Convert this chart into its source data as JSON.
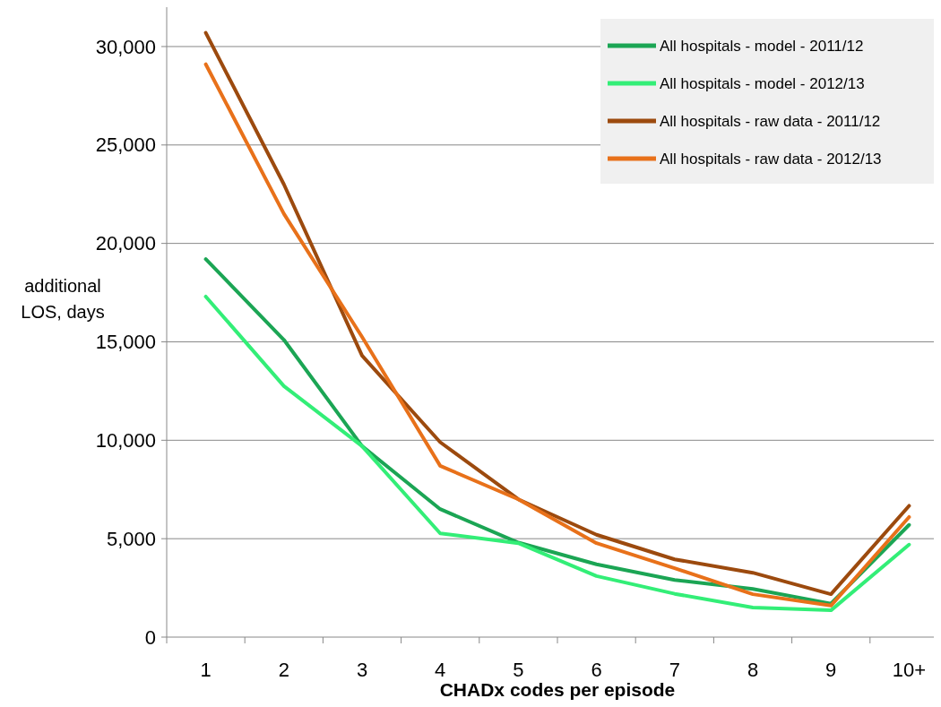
{
  "chart_data": {
    "type": "line",
    "xlabel": "CHADx codes per episode",
    "ylabel": "additional LOS, days",
    "categories": [
      "1",
      "2",
      "3",
      "4",
      "5",
      "6",
      "7",
      "8",
      "9",
      "10+"
    ],
    "ylim": [
      0,
      32000
    ],
    "yticks": [
      0,
      {
        "value": 5000,
        "label": "5,000"
      },
      {
        "value": 10000,
        "label": "10,000"
      },
      {
        "value": 15000,
        "label": "15,000"
      },
      {
        "value": 20000,
        "label": "20,000"
      },
      {
        "value": 25000,
        "label": "25,000"
      },
      {
        "value": 30000,
        "label": "30,000"
      }
    ],
    "grid": "y",
    "legend": "top right",
    "marker": "none",
    "line_style": "solid",
    "series": [
      {
        "name": "All hospitals - model - 2011/12",
        "color": "#1ba554",
        "values": [
          19200,
          15100,
          9700,
          6500,
          4800,
          3700,
          2900,
          2450,
          1700,
          5700
        ]
      },
      {
        "name": "All hospitals - model - 2012/13",
        "color": "#33ee77",
        "values": [
          17300,
          12750,
          9700,
          5270,
          4770,
          3100,
          2200,
          1500,
          1360,
          4700
        ]
      },
      {
        "name": "All hospitals - raw data - 2011/12",
        "color": "#9c4a0e",
        "values": [
          30700,
          23000,
          14300,
          9900,
          7000,
          5200,
          3950,
          3270,
          2180,
          6670
        ]
      },
      {
        "name": "All hospitals - raw data - 2012/13",
        "color": "#e8711a",
        "values": [
          29100,
          21500,
          15250,
          8700,
          7000,
          4770,
          3500,
          2180,
          1600,
          6100
        ]
      }
    ]
  }
}
